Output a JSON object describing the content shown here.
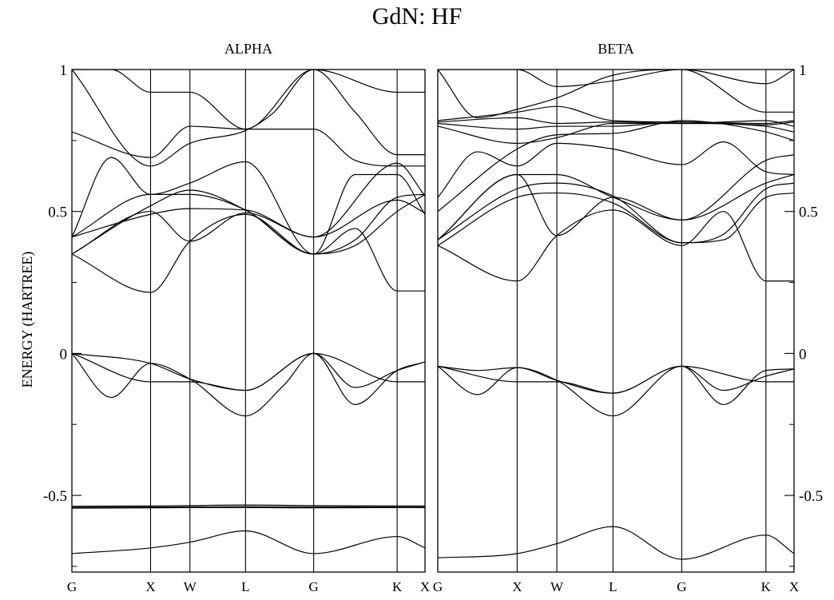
{
  "chart_data": {
    "type": "line",
    "title": "GdN: HF",
    "ylabel": "ENERGY (HARTREE)",
    "ylim": [
      -0.77,
      1.0
    ],
    "y_ticks": [
      {
        "value": 1.0,
        "label": "1"
      },
      {
        "value": 0.5,
        "label": "0.5"
      },
      {
        "value": 0.0,
        "label": "0"
      },
      {
        "value": -0.5,
        "label": "-0.5"
      }
    ],
    "kpath": [
      {
        "label": "G",
        "pos": 0.0
      },
      {
        "label": "X",
        "pos": 1.0
      },
      {
        "label": "W",
        "pos": 1.5
      },
      {
        "label": "L",
        "pos": 2.207
      },
      {
        "label": "G",
        "pos": 3.073
      },
      {
        "label": "K",
        "pos": 4.134
      },
      {
        "label": "X",
        "pos": 4.488
      }
    ],
    "panels": [
      {
        "name": "ALPHA",
        "series": [
          {
            "x": [
              0,
              1,
              1.5,
              2.207,
              3.073,
              4.134,
              4.488
            ],
            "y": [
              -0.705,
              -0.685,
              -0.665,
              -0.625,
              -0.705,
              -0.645,
              -0.685
            ]
          },
          {
            "x": [
              0,
              1,
              1.5,
              2.207,
              3.073,
              4.134,
              4.488
            ],
            "y": [
              -0.538,
              -0.537,
              -0.536,
              -0.534,
              -0.536,
              -0.537,
              -0.537
            ]
          },
          {
            "x": [
              0,
              1,
              1.5,
              2.207,
              3.073,
              4.134,
              4.488
            ],
            "y": [
              -0.542,
              -0.541,
              -0.541,
              -0.54,
              -0.541,
              -0.541,
              -0.541
            ]
          },
          {
            "x": [
              0,
              1,
              1.5,
              2.207,
              3.073,
              4.134,
              4.488
            ],
            "y": [
              -0.545,
              -0.544,
              -0.543,
              -0.543,
              -0.544,
              -0.543,
              -0.543
            ]
          },
          {
            "x": [
              0,
              0.5,
              1,
              1.5,
              2.207,
              2.7,
              3.073,
              3.6,
              4.134,
              4.488
            ],
            "y": [
              0.0,
              -0.155,
              -0.035,
              -0.09,
              -0.22,
              -0.11,
              0.0,
              -0.18,
              -0.06,
              -0.03
            ]
          },
          {
            "x": [
              0,
              1,
              1.5,
              2.207,
              3.073,
              3.6,
              4.134,
              4.488
            ],
            "y": [
              0.0,
              -0.035,
              -0.09,
              -0.13,
              0.0,
              -0.12,
              -0.06,
              -0.03
            ]
          },
          {
            "x": [
              0,
              1,
              1.5,
              2.207,
              3.073,
              4.134,
              4.488
            ],
            "y": [
              0.0,
              -0.1,
              -0.1,
              -0.13,
              0.0,
              -0.1,
              -0.1
            ]
          },
          {
            "x": [
              0,
              1,
              1.5,
              2.207,
              3.073,
              3.6,
              4.134,
              4.488
            ],
            "y": [
              0.35,
              0.215,
              0.395,
              0.49,
              0.35,
              0.44,
              0.22,
              0.22
            ]
          },
          {
            "x": [
              0,
              1,
              1.5,
              2.207,
              3.073,
              3.6,
              4.134,
              4.488
            ],
            "y": [
              0.35,
              0.52,
              0.575,
              0.505,
              0.35,
              0.4,
              0.55,
              0.56
            ]
          },
          {
            "x": [
              0,
              1,
              1.5,
              2.207,
              3.073,
              3.6,
              4.134,
              4.488
            ],
            "y": [
              0.41,
              0.56,
              0.56,
              0.505,
              0.35,
              0.38,
              0.5,
              0.56
            ]
          },
          {
            "x": [
              0,
              1,
              1.5,
              2.207,
              3.073,
              4.134,
              4.488
            ],
            "y": [
              0.41,
              0.49,
              0.51,
              0.505,
              0.41,
              0.54,
              0.495
            ]
          },
          {
            "x": [
              0,
              1,
              1.5,
              2.207,
              3.073,
              4.134,
              4.488
            ],
            "y": [
              0.35,
              0.5,
              0.395,
              0.495,
              0.41,
              0.67,
              0.555
            ]
          },
          {
            "x": [
              0,
              0.5,
              1,
              1.5,
              2.207,
              3.073,
              3.6,
              4.134,
              4.488
            ],
            "y": [
              0.41,
              0.69,
              0.56,
              0.6,
              0.675,
              0.35,
              0.63,
              0.63,
              0.49
            ]
          },
          {
            "x": [
              0,
              1,
              1.5,
              2.207,
              3.073,
              3.6,
              4.134,
              4.488
            ],
            "y": [
              0.78,
              0.69,
              0.8,
              0.79,
              0.79,
              0.68,
              0.66,
              0.66
            ]
          },
          {
            "x": [
              0,
              1,
              1.5,
              2.207,
              2.55,
              3.073,
              3.6,
              4.134,
              4.488
            ],
            "y": [
              1.0,
              0.66,
              0.74,
              0.785,
              0.845,
              1.0,
              0.85,
              0.7,
              0.7
            ]
          },
          {
            "x": [
              0,
              0.5,
              1,
              1.5,
              2.207,
              3.073,
              4.134,
              4.488
            ],
            "y": [
              1.0,
              1.0,
              0.92,
              0.92,
              0.79,
              1.0,
              0.92,
              0.92
            ]
          }
        ]
      },
      {
        "name": "BETA",
        "series": [
          {
            "x": [
              0,
              1,
              1.5,
              2.207,
              3.073,
              4.134,
              4.488
            ],
            "y": [
              -0.72,
              -0.705,
              -0.67,
              -0.61,
              -0.725,
              -0.64,
              -0.705
            ]
          },
          {
            "x": [
              0,
              0.5,
              1,
              1.5,
              2.207,
              3.073,
              3.6,
              4.134,
              4.488
            ],
            "y": [
              -0.045,
              -0.06,
              -0.05,
              -0.095,
              -0.22,
              -0.045,
              -0.18,
              -0.06,
              -0.055
            ]
          },
          {
            "x": [
              0,
              0.5,
              1,
              1.5,
              2.207,
              3.073,
              3.6,
              4.134,
              4.488
            ],
            "y": [
              -0.045,
              -0.145,
              -0.05,
              -0.095,
              -0.14,
              -0.045,
              -0.13,
              -0.08,
              -0.055
            ]
          },
          {
            "x": [
              0,
              1,
              1.5,
              2.207,
              3.073,
              4.134,
              4.488
            ],
            "y": [
              -0.045,
              -0.1,
              -0.1,
              -0.14,
              -0.045,
              -0.1,
              -0.1
            ]
          },
          {
            "x": [
              0,
              1,
              1.5,
              2.207,
              3.073,
              3.6,
              4.134,
              4.488
            ],
            "y": [
              0.38,
              0.255,
              0.415,
              0.505,
              0.38,
              0.5,
              0.255,
              0.255
            ]
          },
          {
            "x": [
              0,
              1,
              1.5,
              2.207,
              3.073,
              3.6,
              4.134,
              4.488
            ],
            "y": [
              0.38,
              0.55,
              0.565,
              0.53,
              0.39,
              0.42,
              0.58,
              0.6
            ]
          },
          {
            "x": [
              0,
              1,
              1.5,
              2.207,
              3.073,
              3.6,
              4.134,
              4.488
            ],
            "y": [
              0.4,
              0.58,
              0.6,
              0.555,
              0.39,
              0.4,
              0.55,
              0.565
            ]
          },
          {
            "x": [
              0,
              1,
              1.5,
              2.207,
              3.073,
              4.134,
              4.488
            ],
            "y": [
              0.4,
              0.63,
              0.63,
              0.55,
              0.47,
              0.6,
              0.63
            ]
          },
          {
            "x": [
              0,
              1,
              1.5,
              2.207,
              3.073,
              4.134,
              4.488
            ],
            "y": [
              0.4,
              0.63,
              0.415,
              0.55,
              0.47,
              0.68,
              0.7
            ]
          },
          {
            "x": [
              0,
              0.5,
              1,
              1.5,
              2.207,
              3.073,
              3.6,
              4.134,
              4.488
            ],
            "y": [
              0.55,
              0.71,
              0.66,
              0.74,
              0.72,
              0.665,
              0.745,
              0.64,
              0.63
            ]
          },
          {
            "x": [
              0,
              1,
              1.5,
              2.207,
              3.073,
              4.134,
              4.488
            ],
            "y": [
              0.5,
              0.72,
              0.77,
              0.775,
              0.82,
              0.78,
              0.75
            ]
          },
          {
            "x": [
              0,
              1,
              1.5,
              2.207,
              3.073,
              4.134,
              4.488
            ],
            "y": [
              0.8,
              0.74,
              0.76,
              0.81,
              0.81,
              0.8,
              0.78
            ]
          },
          {
            "x": [
              0,
              1,
              1.5,
              2.207,
              3.073,
              4.134,
              4.488
            ],
            "y": [
              0.81,
              0.79,
              0.8,
              0.8,
              0.815,
              0.805,
              0.815
            ]
          },
          {
            "x": [
              0,
              1,
              1.5,
              2.207,
              3.073,
              4.134,
              4.488
            ],
            "y": [
              0.815,
              0.83,
              0.81,
              0.815,
              0.81,
              0.82,
              0.8
            ]
          },
          {
            "x": [
              0,
              1,
              1.5,
              2.207,
              3.073,
              4.134,
              4.488
            ],
            "y": [
              0.82,
              0.85,
              0.87,
              0.82,
              0.815,
              0.81,
              0.82
            ]
          },
          {
            "x": [
              0,
              0.5,
              1,
              1.5,
              2.207,
              3.073,
              4.134,
              4.488
            ],
            "y": [
              1.0,
              0.83,
              0.86,
              0.9,
              0.98,
              1.0,
              0.85,
              0.85
            ]
          },
          {
            "x": [
              0,
              1,
              1.5,
              2.207,
              3.073,
              4.134,
              4.488
            ],
            "y": [
              1.0,
              1.0,
              0.94,
              0.96,
              1.0,
              0.95,
              1.0
            ]
          }
        ]
      }
    ]
  }
}
